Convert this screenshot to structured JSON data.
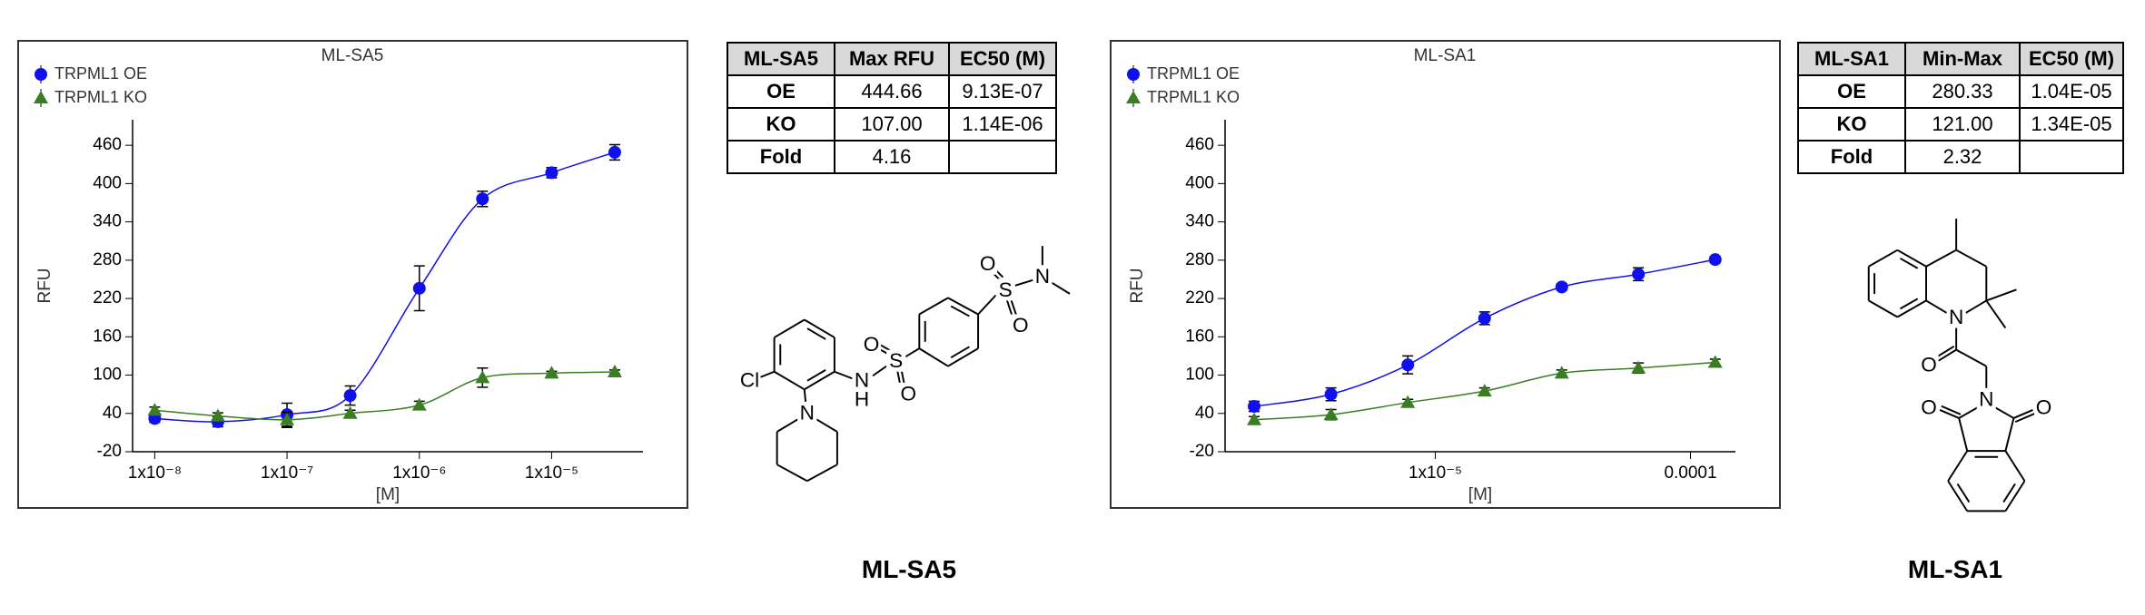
{
  "chart_data": [
    {
      "type": "scatter",
      "title": "ML-SA5",
      "x_label": "[M]",
      "y_label": "RFU",
      "log_x": true,
      "legend": "top-left",
      "grid": false,
      "x": [
        1e-08,
        3e-08,
        1e-07,
        3e-07,
        1e-06,
        3e-06,
        1e-05,
        3e-05
      ],
      "xlim": [
        6.8e-09,
        4.9e-05
      ],
      "xticks": [
        {
          "value": 1e-08,
          "label": "1x10⁻⁸"
        },
        {
          "value": 1e-07,
          "label": "1x10⁻⁷"
        },
        {
          "value": 1e-06,
          "label": "1x10⁻⁶"
        },
        {
          "value": 1e-05,
          "label": "1x10⁻⁵"
        }
      ],
      "ylim": [
        -20,
        500
      ],
      "yticks": [
        -20,
        40,
        100,
        160,
        220,
        280,
        340,
        400,
        460
      ],
      "series": [
        {
          "name": "TRPML1 OE",
          "color": "#1010ee",
          "marker": "circle",
          "values": [
            32,
            27,
            38,
            68,
            236,
            376,
            417,
            449
          ],
          "errors": [
            6,
            8,
            18,
            15,
            35,
            12,
            8,
            12
          ]
        },
        {
          "name": "TRPML1 KO",
          "color": "#3a7d22",
          "marker": "triangle",
          "values": [
            45,
            36,
            30,
            40,
            53,
            96,
            103,
            105
          ],
          "errors": [
            5,
            5,
            12,
            5,
            6,
            15,
            3,
            3
          ]
        }
      ]
    },
    {
      "type": "scatter",
      "title": "ML-SA1",
      "x_label": "[M]",
      "y_label": "RFU",
      "log_x": true,
      "legend": "top-left",
      "grid": false,
      "x": [
        1.95e-06,
        3.9e-06,
        7.8e-06,
        1.56e-05,
        3.13e-05,
        6.25e-05,
        0.000125
      ],
      "xlim": [
        1.5e-06,
        0.00015
      ],
      "xticks": [
        {
          "value": 1e-05,
          "label": "1x10⁻⁵"
        },
        0.0001
      ],
      "ylim": [
        -20,
        500
      ],
      "yticks": [
        -20,
        40,
        100,
        160,
        220,
        280,
        340,
        400,
        460
      ],
      "series": [
        {
          "name": "TRPML1 OE",
          "color": "#1010ee",
          "marker": "circle",
          "values": [
            51,
            70,
            116,
            189,
            238,
            258,
            281
          ],
          "errors": [
            8,
            10,
            14,
            10,
            5,
            10,
            5
          ]
        },
        {
          "name": "TRPML1 KO",
          "color": "#3a7d22",
          "marker": "triangle",
          "values": [
            30,
            38,
            57,
            75,
            103,
            111,
            120
          ],
          "errors": [
            5,
            8,
            5,
            5,
            5,
            8,
            5
          ]
        }
      ]
    }
  ],
  "tables": [
    {
      "headers": [
        "ML-SA5",
        "Max RFU",
        "EC50 (M)"
      ],
      "rows": [
        [
          "OE",
          "444.66",
          "9.13E-07"
        ],
        [
          "KO",
          "107.00",
          "1.14E-06"
        ],
        [
          "Fold",
          "4.16"
        ]
      ]
    },
    {
      "headers": [
        "ML-SA1",
        "Min-Max",
        "EC50 (M)"
      ],
      "rows": [
        [
          "OE",
          "280.33",
          "1.04E-05"
        ],
        [
          "KO",
          "121.00",
          "1.34E-05"
        ],
        [
          "Fold",
          "2.32"
        ]
      ]
    }
  ],
  "compounds": [
    {
      "name": "ML-SA5",
      "atoms": [
        "Cl",
        "N",
        "N",
        "H",
        "S",
        "O",
        "O",
        "S",
        "O",
        "O",
        "N"
      ]
    },
    {
      "name": "ML-SA1",
      "atoms": [
        "N",
        "O",
        "N",
        "O",
        "O"
      ]
    }
  ]
}
